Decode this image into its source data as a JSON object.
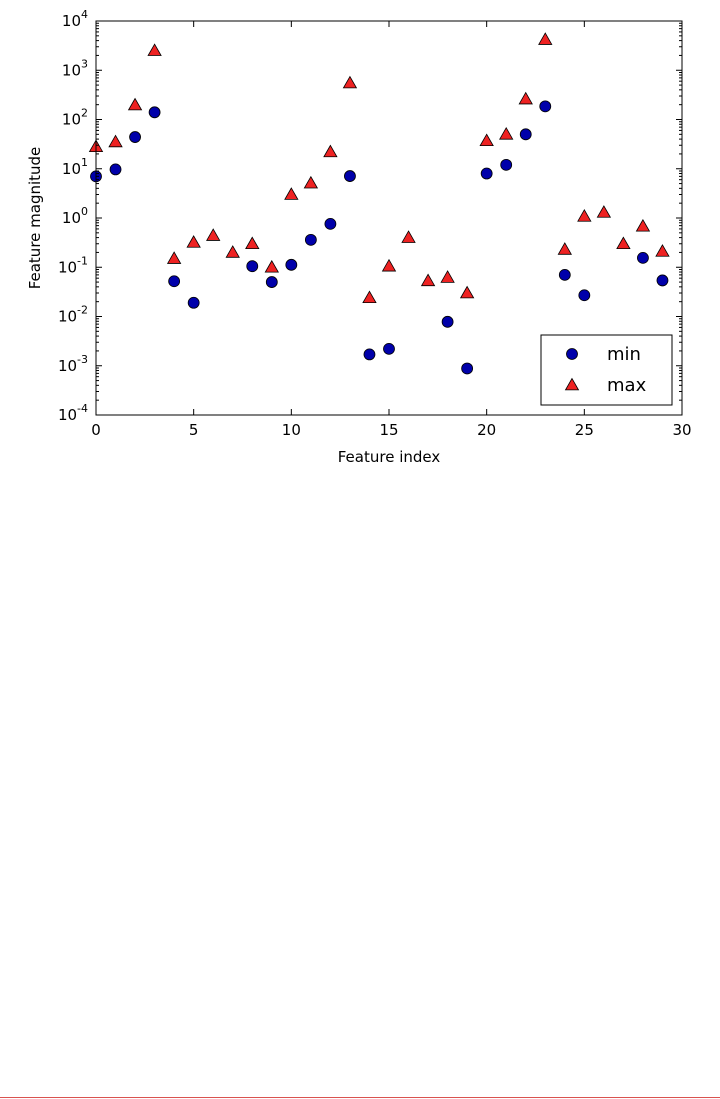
{
  "chart_data": {
    "type": "scatter",
    "xlabel": "Feature index",
    "ylabel": "Feature magnitude",
    "xlim": [
      0,
      30
    ],
    "ylim": [
      0.0001,
      10000
    ],
    "y_scale": "log",
    "x_ticks": [
      0,
      5,
      10,
      15,
      20,
      25,
      30
    ],
    "y_ticks": [
      {
        "base": "10",
        "exp": "-4",
        "value": 0.0001
      },
      {
        "base": "10",
        "exp": "-3",
        "value": 0.001
      },
      {
        "base": "10",
        "exp": "-2",
        "value": 0.01
      },
      {
        "base": "10",
        "exp": "-1",
        "value": 0.1
      },
      {
        "base": "10",
        "exp": "0",
        "value": 1
      },
      {
        "base": "10",
        "exp": "1",
        "value": 10
      },
      {
        "base": "10",
        "exp": "2",
        "value": 100
      },
      {
        "base": "10",
        "exp": "3",
        "value": 1000
      },
      {
        "base": "10",
        "exp": "4",
        "value": 10000
      }
    ],
    "grid": false,
    "legend_position": "bottom-right",
    "series": [
      {
        "name": "min",
        "marker": "circle",
        "color": "#0000aa",
        "x": [
          0,
          1,
          2,
          3,
          4,
          5,
          8,
          9,
          10,
          11,
          12,
          13,
          14,
          15,
          18,
          19,
          20,
          21,
          22,
          23,
          24,
          25,
          28,
          29
        ],
        "y": [
          7,
          9.7,
          44,
          140,
          0.052,
          0.019,
          0.105,
          0.05,
          0.112,
          0.36,
          0.76,
          7.1,
          0.0017,
          0.0022,
          0.0078,
          0.00088,
          8,
          12,
          50,
          185,
          0.07,
          0.027,
          0.155,
          0.054
        ]
      },
      {
        "name": "max",
        "marker": "triangle",
        "color": "#ee2222",
        "x": [
          0,
          1,
          2,
          3,
          4,
          5,
          6,
          7,
          8,
          9,
          10,
          11,
          12,
          13,
          14,
          15,
          16,
          17,
          18,
          19,
          20,
          21,
          22,
          23,
          24,
          25,
          26,
          27,
          28,
          29
        ],
        "y": [
          28,
          35,
          197,
          2500,
          0.15,
          0.32,
          0.44,
          0.2,
          0.3,
          0.1,
          3,
          5.1,
          22,
          550,
          0.024,
          0.105,
          0.4,
          0.053,
          0.062,
          0.03,
          37,
          50,
          260,
          4200,
          0.23,
          1.08,
          1.3,
          0.3,
          0.68,
          0.21
        ]
      }
    ]
  }
}
